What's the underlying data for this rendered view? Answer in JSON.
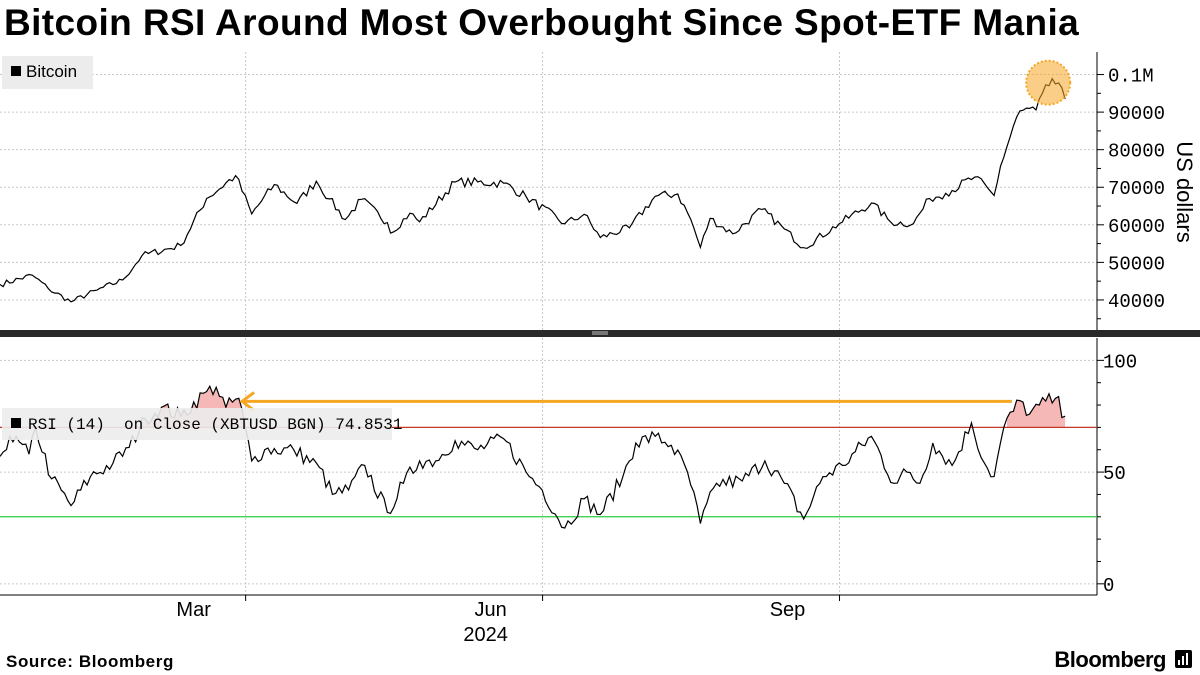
{
  "title": "Bitcoin RSI Around Most Overbought Since Spot-ETF Mania",
  "source": "Source: Bloomberg",
  "brand": "Bloomberg",
  "colors": {
    "price": "#000000",
    "rsi": "#000000",
    "overbought_line": "#c0392b",
    "oversold_line": "#2ecc40",
    "overbought_fill": "#f4a5a5",
    "arrow": "#f5a623",
    "highlight": "#f5a623",
    "grid": "#c8c8c8"
  },
  "chart_data": [
    {
      "type": "line",
      "panel": "price",
      "legend": "Bitcoin",
      "ylabel": "US dollars",
      "ylim": [
        32000,
        106000
      ],
      "yticks": [
        40000,
        50000,
        60000,
        70000,
        80000,
        90000,
        100000
      ],
      "ytick_labels": [
        "40000",
        "50000",
        "60000",
        "70000",
        "80000",
        "90000",
        "0.1M"
      ],
      "x_range": [
        "2024-01-01",
        "2024-11-30"
      ],
      "anchors": [
        [
          "2024-01-01",
          44100
        ],
        [
          "2024-01-11",
          46600
        ],
        [
          "2024-01-16",
          43000
        ],
        [
          "2024-01-23",
          39500
        ],
        [
          "2024-01-31",
          42600
        ],
        [
          "2024-02-08",
          45300
        ],
        [
          "2024-02-14",
          51800
        ],
        [
          "2024-02-26",
          54500
        ],
        [
          "2024-03-05",
          67000
        ],
        [
          "2024-03-14",
          73100
        ],
        [
          "2024-03-19",
          62900
        ],
        [
          "2024-03-26",
          70700
        ],
        [
          "2024-04-02",
          65700
        ],
        [
          "2024-04-08",
          71600
        ],
        [
          "2024-04-12",
          66900
        ],
        [
          "2024-04-17",
          61400
        ],
        [
          "2024-04-22",
          66800
        ],
        [
          "2024-04-30",
          60600
        ],
        [
          "2024-05-01",
          57800
        ],
        [
          "2024-05-07",
          63100
        ],
        [
          "2024-05-10",
          60800
        ],
        [
          "2024-05-21",
          71400
        ],
        [
          "2024-06-05",
          71100
        ],
        [
          "2024-06-12",
          67500
        ],
        [
          "2024-06-24",
          60300
        ],
        [
          "2024-06-30",
          62800
        ],
        [
          "2024-07-05",
          56600
        ],
        [
          "2024-07-14",
          59200
        ],
        [
          "2024-07-22",
          67600
        ],
        [
          "2024-07-29",
          68200
        ],
        [
          "2024-08-02",
          61500
        ],
        [
          "2024-08-05",
          54000
        ],
        [
          "2024-08-08",
          61700
        ],
        [
          "2024-08-15",
          57600
        ],
        [
          "2024-08-24",
          64100
        ],
        [
          "2024-08-31",
          58900
        ],
        [
          "2024-09-06",
          53900
        ],
        [
          "2024-09-17",
          60300
        ],
        [
          "2024-09-27",
          65800
        ],
        [
          "2024-10-03",
          60700
        ],
        [
          "2024-10-10",
          60300
        ],
        [
          "2024-10-15",
          67000
        ],
        [
          "2024-10-20",
          68400
        ],
        [
          "2024-10-29",
          72700
        ],
        [
          "2024-11-04",
          67800
        ],
        [
          "2024-11-06",
          75600
        ],
        [
          "2024-11-11",
          88700
        ],
        [
          "2024-11-13",
          90500
        ],
        [
          "2024-11-17",
          90600
        ],
        [
          "2024-11-22",
          98900
        ],
        [
          "2024-11-26",
          93500
        ]
      ],
      "highlight_last_peak": true
    },
    {
      "type": "line",
      "panel": "rsi",
      "legend": "RSI (14)  on Close (XBTUSD BGN) 74.8531",
      "last_value": 74.8531,
      "ylim": [
        -5,
        110
      ],
      "yticks": [
        0,
        50,
        100
      ],
      "ytick_labels": [
        "0",
        "50",
        "100"
      ],
      "overbought": 70,
      "oversold": 30,
      "x_range": [
        "2024-01-01",
        "2024-11-30"
      ],
      "anchors": [
        [
          "2024-01-01",
          57
        ],
        [
          "2024-01-04",
          66
        ],
        [
          "2024-01-10",
          58
        ],
        [
          "2024-01-12",
          70
        ],
        [
          "2024-01-17",
          47
        ],
        [
          "2024-01-23",
          35
        ],
        [
          "2024-01-29",
          48
        ],
        [
          "2024-02-05",
          54
        ],
        [
          "2024-02-10",
          61
        ],
        [
          "2024-02-15",
          74
        ],
        [
          "2024-02-20",
          79
        ],
        [
          "2024-02-26",
          75
        ],
        [
          "2024-03-05",
          86
        ],
        [
          "2024-03-08",
          88
        ],
        [
          "2024-03-11",
          79
        ],
        [
          "2024-03-15",
          83
        ],
        [
          "2024-03-19",
          55
        ],
        [
          "2024-03-23",
          60
        ],
        [
          "2024-04-01",
          60
        ],
        [
          "2024-04-09",
          52
        ],
        [
          "2024-04-13",
          40
        ],
        [
          "2024-04-18",
          42
        ],
        [
          "2024-04-23",
          53
        ],
        [
          "2024-04-30",
          32
        ],
        [
          "2024-05-05",
          45
        ],
        [
          "2024-05-10",
          55
        ],
        [
          "2024-05-15",
          55
        ],
        [
          "2024-05-21",
          64
        ],
        [
          "2024-05-28",
          60
        ],
        [
          "2024-06-05",
          65
        ],
        [
          "2024-06-12",
          50
        ],
        [
          "2024-06-17",
          42
        ],
        [
          "2024-06-24",
          25
        ],
        [
          "2024-06-30",
          38
        ],
        [
          "2024-07-05",
          31
        ],
        [
          "2024-07-12",
          48
        ],
        [
          "2024-07-16",
          63
        ],
        [
          "2024-07-22",
          66
        ],
        [
          "2024-07-27",
          62
        ],
        [
          "2024-08-01",
          50
        ],
        [
          "2024-08-05",
          27
        ],
        [
          "2024-08-10",
          45
        ],
        [
          "2024-08-18",
          46
        ],
        [
          "2024-08-25",
          55
        ],
        [
          "2024-08-31",
          45
        ],
        [
          "2024-09-06",
          29
        ],
        [
          "2024-09-12",
          48
        ],
        [
          "2024-09-18",
          53
        ],
        [
          "2024-09-27",
          66
        ],
        [
          "2024-10-04",
          45
        ],
        [
          "2024-10-08",
          50
        ],
        [
          "2024-10-12",
          45
        ],
        [
          "2024-10-16",
          63
        ],
        [
          "2024-10-22",
          53
        ],
        [
          "2024-10-28",
          72
        ],
        [
          "2024-11-01",
          54
        ],
        [
          "2024-11-04",
          48
        ],
        [
          "2024-11-07",
          70
        ],
        [
          "2024-11-12",
          82
        ],
        [
          "2024-11-15",
          76
        ],
        [
          "2024-11-18",
          80
        ],
        [
          "2024-11-23",
          83
        ],
        [
          "2024-11-26",
          75
        ]
      ],
      "annotation": "arrow from latest overbought reading pointing back to March 2024 peak"
    }
  ],
  "x_axis": {
    "ticks": [
      {
        "label": "Mar",
        "date": "2024-03-01"
      },
      {
        "label": "Jun",
        "date": "2024-06-01"
      },
      {
        "label": "Sep",
        "date": "2024-09-01"
      }
    ],
    "year_label": "2024",
    "year_date": "2024-06-01"
  }
}
